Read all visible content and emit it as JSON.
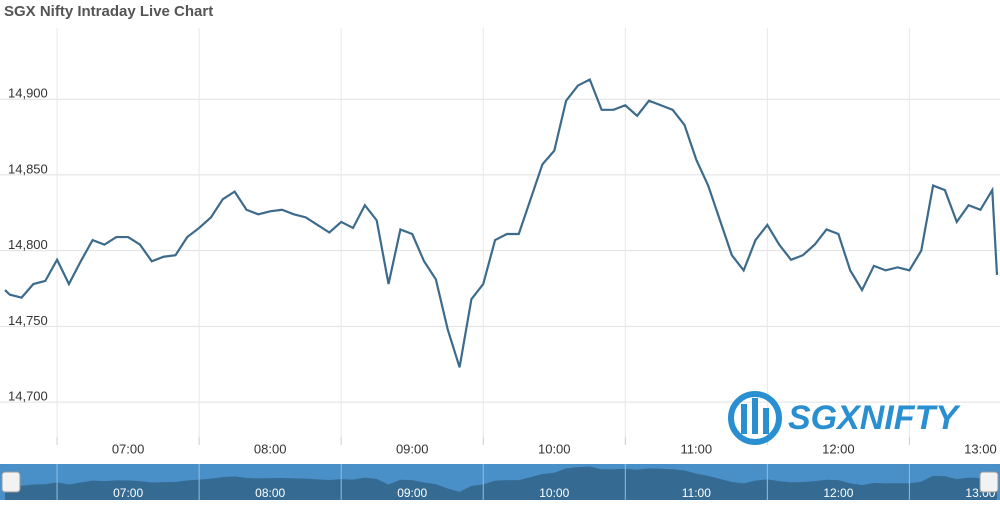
{
  "chart_data": {
    "type": "line",
    "title": "SGX Nifty Intraday Live Chart",
    "logo_text": "SGXNIFTY",
    "x": [
      "06:08",
      "06:10",
      "06:15",
      "06:20",
      "06:25",
      "06:30",
      "06:35",
      "06:40",
      "06:45",
      "06:50",
      "06:55",
      "07:00",
      "07:05",
      "07:10",
      "07:15",
      "07:20",
      "07:25",
      "07:30",
      "07:35",
      "07:40",
      "07:45",
      "07:50",
      "07:55",
      "08:00",
      "08:05",
      "08:10",
      "08:15",
      "08:20",
      "08:25",
      "08:30",
      "08:35",
      "08:40",
      "08:45",
      "08:50",
      "08:55",
      "09:00",
      "09:05",
      "09:10",
      "09:15",
      "09:20",
      "09:25",
      "09:30",
      "09:35",
      "09:40",
      "09:45",
      "09:50",
      "09:55",
      "10:00",
      "10:05",
      "10:10",
      "10:15",
      "10:20",
      "10:25",
      "10:30",
      "10:35",
      "10:40",
      "10:45",
      "10:50",
      "10:55",
      "11:00",
      "11:05",
      "11:10",
      "11:15",
      "11:20",
      "11:25",
      "11:30",
      "11:35",
      "11:40",
      "11:45",
      "11:50",
      "11:55",
      "12:00",
      "12:05",
      "12:10",
      "12:15",
      "12:20",
      "12:25",
      "12:30",
      "12:35",
      "12:40",
      "12:45",
      "12:50",
      "12:55",
      "13:00",
      "13:05",
      "13:07"
    ],
    "series": [
      {
        "name": "SGX Nifty",
        "color": "#3d6b8c",
        "values": [
          14774,
          14771,
          14769,
          14778,
          14780,
          14794,
          14778,
          14793,
          14807,
          14804,
          14809,
          14809,
          14804,
          14793,
          14796,
          14797,
          14809,
          14815,
          14822,
          14834,
          14839,
          14827,
          14824,
          14826,
          14827,
          14824,
          14822,
          14817,
          14812,
          14819,
          14815,
          14830,
          14820,
          14778,
          14814,
          14811,
          14793,
          14781,
          14748,
          14723,
          14768,
          14778,
          14807,
          14811,
          14811,
          14834,
          14857,
          14866,
          14899,
          14909,
          14913,
          14893,
          14893,
          14896,
          14889,
          14899,
          14896,
          14893,
          14883,
          14860,
          14843,
          14820,
          14797,
          14787,
          14807,
          14817,
          14804,
          14794,
          14797,
          14804,
          14814,
          14811,
          14787,
          14774,
          14790,
          14787,
          14789,
          14787,
          14800,
          14843,
          14840,
          14819,
          14830,
          14827,
          14840,
          14784
        ]
      }
    ],
    "xlim": [
      "06:08",
      "13:07"
    ],
    "xticks": [
      "07:00",
      "08:00",
      "09:00",
      "10:00",
      "11:00",
      "12:00",
      "13:00"
    ],
    "ylim": [
      14677,
      14947
    ],
    "yticks": [
      {
        "value": 14700,
        "label": "14,700"
      },
      {
        "value": 14750,
        "label": "14,750"
      },
      {
        "value": 14800,
        "label": "14,800"
      },
      {
        "value": 14850,
        "label": "14,850"
      },
      {
        "value": 14900,
        "label": "14,900"
      }
    ],
    "grid": true
  }
}
